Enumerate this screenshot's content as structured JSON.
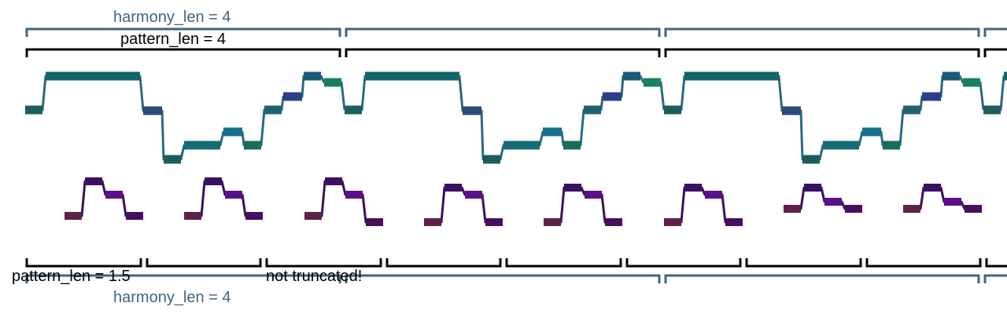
{
  "labels": {
    "harmony_top": "harmony_len = 4",
    "pattern_top": "pattern_len = 4",
    "pattern_bottom": "pattern_len = 1.5",
    "note": "not truncated!",
    "harmony_bottom": "harmony_len = 4"
  },
  "colors": {
    "harmony_bracket": "#3f6680",
    "pattern_bracket": "#000000",
    "harmony_line": "#2a6a80",
    "pattern_line": "#3a1158",
    "label_harmony": "#3f6680",
    "label_pattern": "#000000"
  }
}
